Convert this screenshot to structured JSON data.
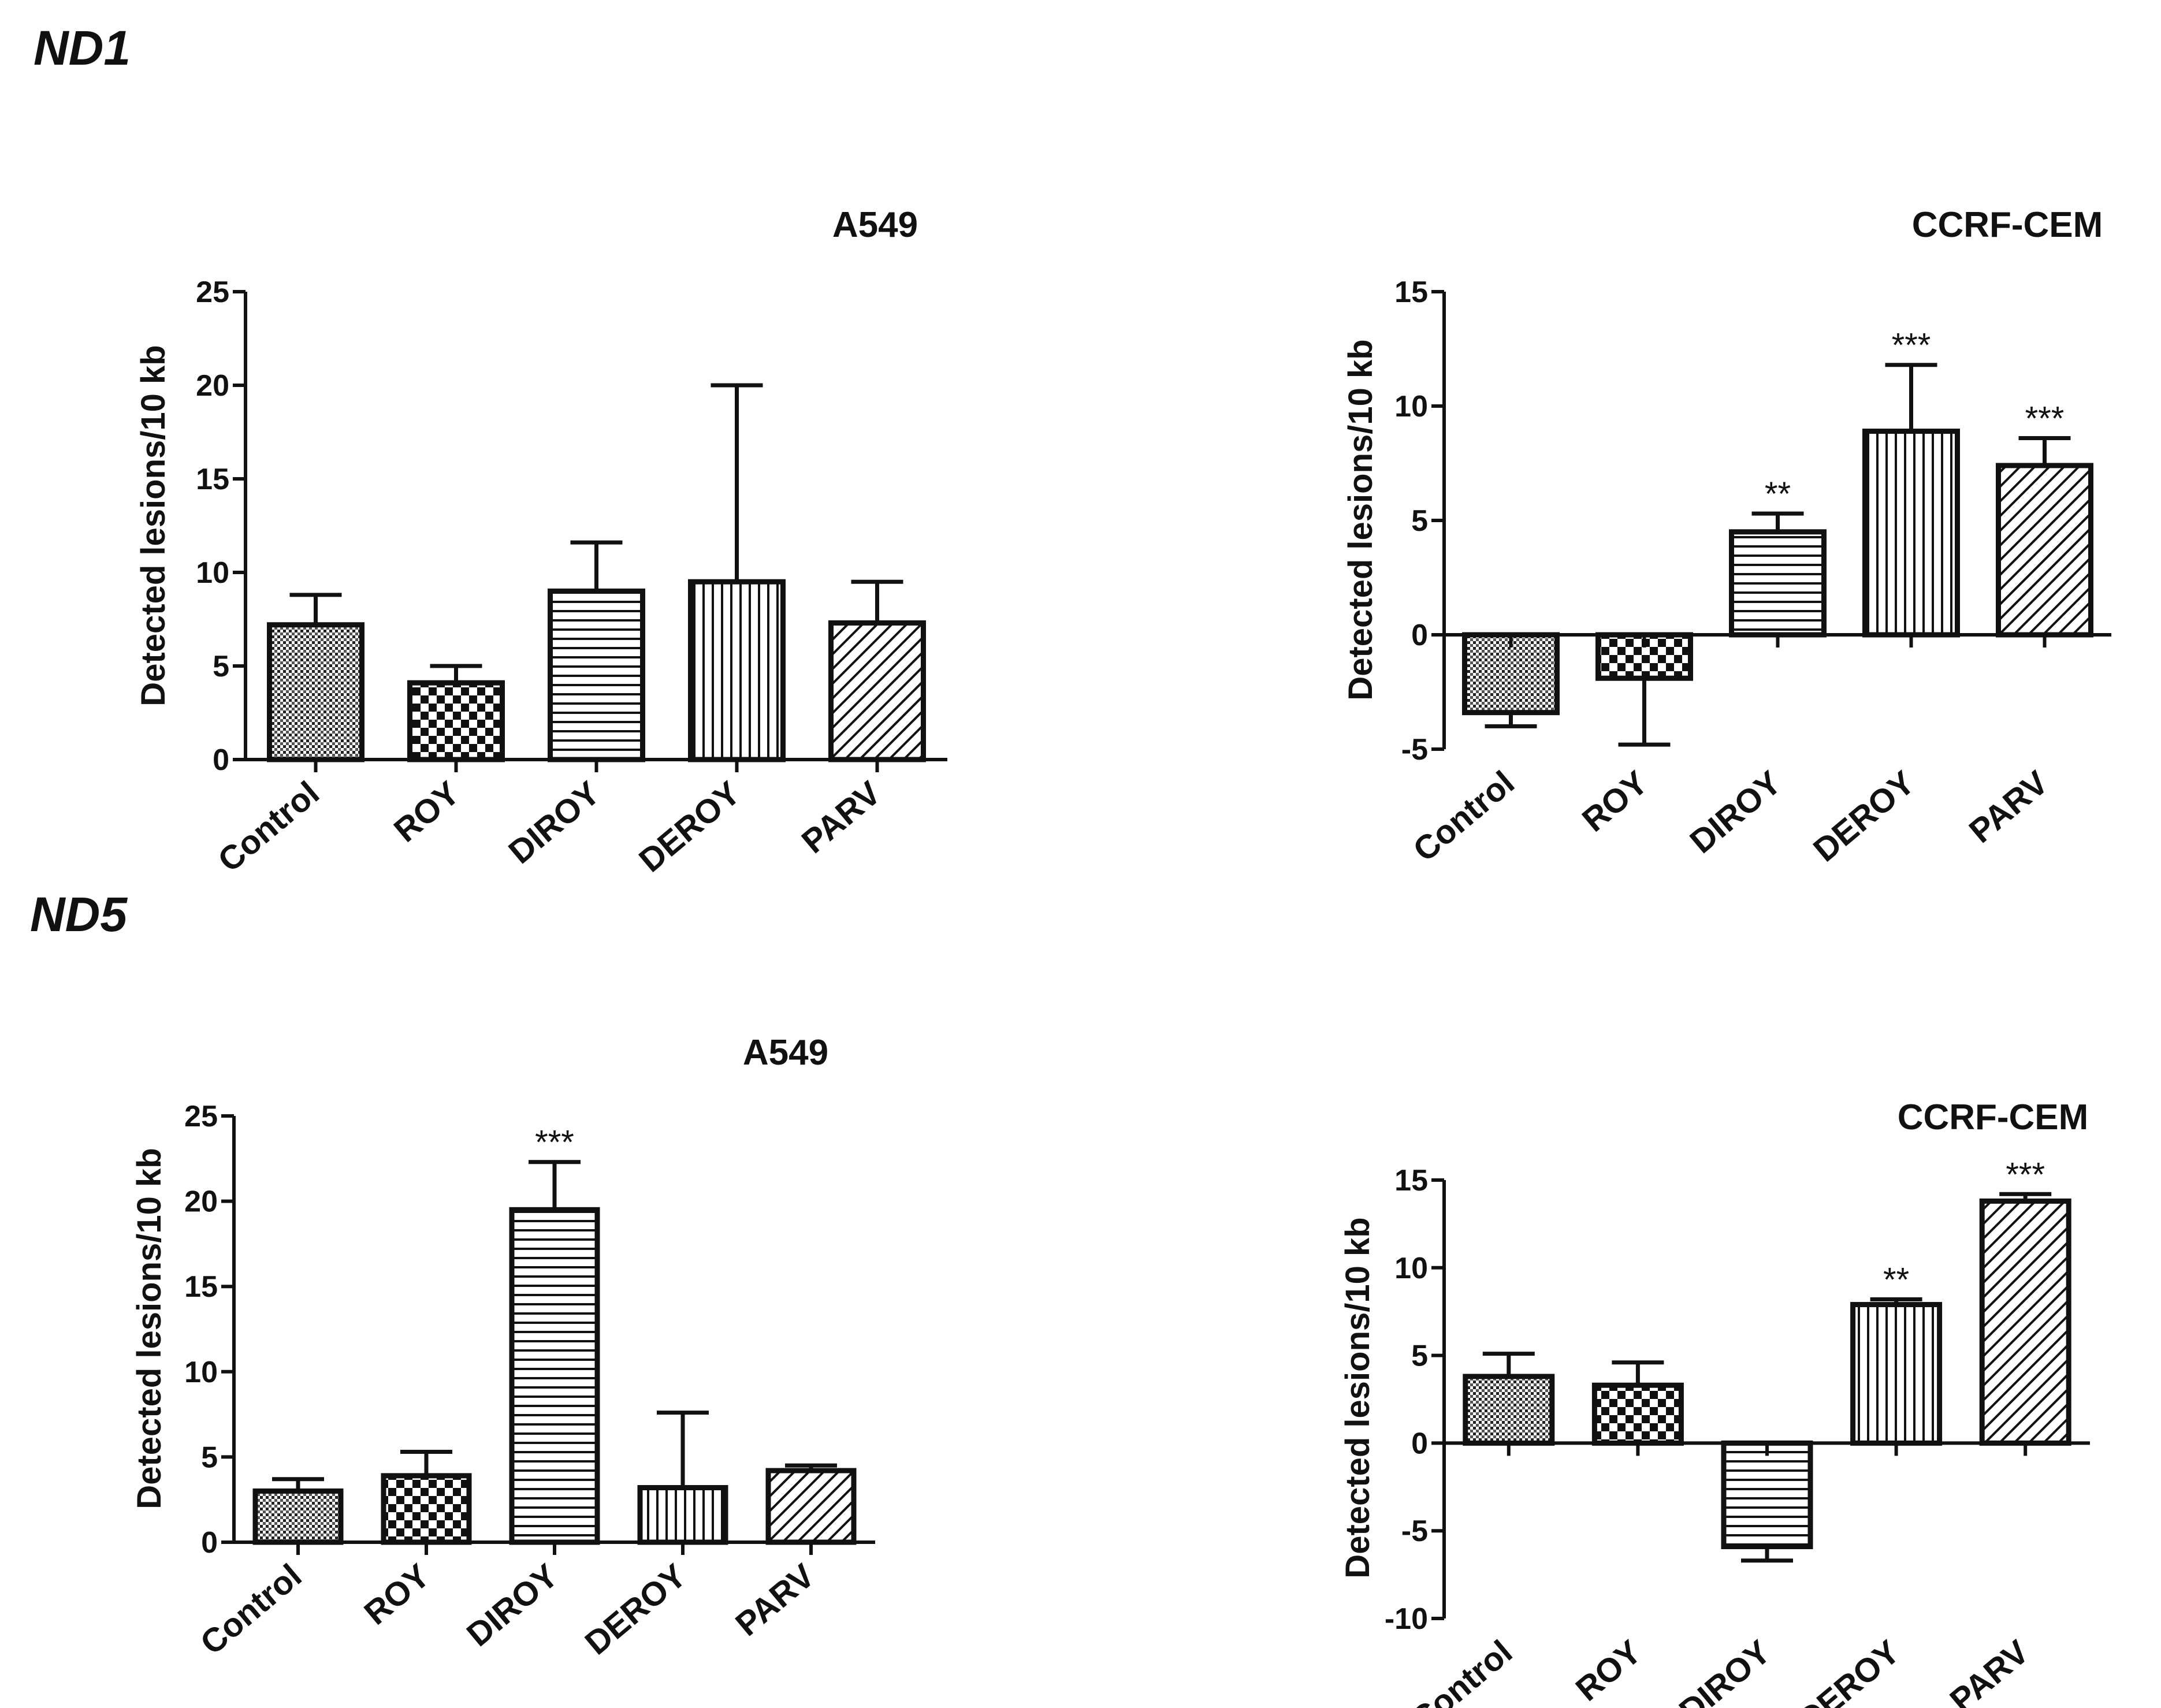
{
  "panels": [
    {
      "label": "ND1"
    },
    {
      "label": "ND5"
    }
  ],
  "y_axis_label": "Detected lesions/10 kb",
  "chart_data": [
    {
      "type": "bar",
      "panel": "ND1",
      "title": "A549",
      "categories": [
        "Control",
        "ROY",
        "DIROY",
        "DEROY",
        "PARV"
      ],
      "values": [
        7.2,
        4.1,
        9.0,
        9.5,
        7.3
      ],
      "error": [
        1.6,
        0.9,
        2.6,
        10.5,
        2.2
      ],
      "significance": [
        "",
        "",
        "",
        "",
        ""
      ],
      "patterns": [
        "dots",
        "checker",
        "hlines",
        "vlines",
        "diag"
      ],
      "ylabel": "Detected lesions/10 kb",
      "ylim": [
        0,
        25
      ],
      "yticks": [
        0,
        5,
        10,
        15,
        20,
        25
      ]
    },
    {
      "type": "bar",
      "panel": "ND1",
      "title": "CCRF-CEM",
      "categories": [
        "Control",
        "ROY",
        "DIROY",
        "DEROY",
        "PARV"
      ],
      "values": [
        -3.4,
        -1.9,
        4.5,
        8.9,
        7.4
      ],
      "error": [
        0.6,
        2.9,
        0.8,
        2.9,
        1.2
      ],
      "significance": [
        "",
        "",
        "**",
        "***",
        "***"
      ],
      "patterns": [
        "dots",
        "checker",
        "hlines",
        "vlines",
        "diag"
      ],
      "ylabel": "Detected lesions/10 kb",
      "ylim": [
        -5,
        15
      ],
      "yticks": [
        -5,
        0,
        5,
        10,
        15
      ]
    },
    {
      "type": "bar",
      "panel": "ND5",
      "title": "A549",
      "categories": [
        "Control",
        "ROY",
        "DIROY",
        "DEROY",
        "PARV"
      ],
      "values": [
        3.0,
        3.9,
        19.5,
        3.2,
        4.2
      ],
      "error": [
        0.7,
        1.4,
        2.8,
        4.4,
        0.3
      ],
      "significance": [
        "",
        "",
        "***",
        "",
        ""
      ],
      "patterns": [
        "dots",
        "checker",
        "hlines",
        "vlines",
        "diag"
      ],
      "ylabel": "Detected lesions/10 kb",
      "ylim": [
        0,
        25
      ],
      "yticks": [
        0,
        5,
        10,
        15,
        20,
        25
      ]
    },
    {
      "type": "bar",
      "panel": "ND5",
      "title": "CCRF-CEM",
      "categories": [
        "Control",
        "ROY",
        "DIROY",
        "DEROY",
        "PARV"
      ],
      "values": [
        3.8,
        3.3,
        -5.9,
        7.9,
        13.8
      ],
      "error": [
        1.3,
        1.3,
        0.8,
        0.3,
        0.4
      ],
      "significance": [
        "",
        "",
        "",
        "**",
        "***"
      ],
      "patterns": [
        "dots",
        "checker",
        "hlines",
        "vlines",
        "diag"
      ],
      "ylabel": "Detected lesions/10 kb",
      "ylim": [
        -10,
        15
      ],
      "yticks": [
        -10,
        -5,
        0,
        5,
        10,
        15
      ]
    }
  ]
}
